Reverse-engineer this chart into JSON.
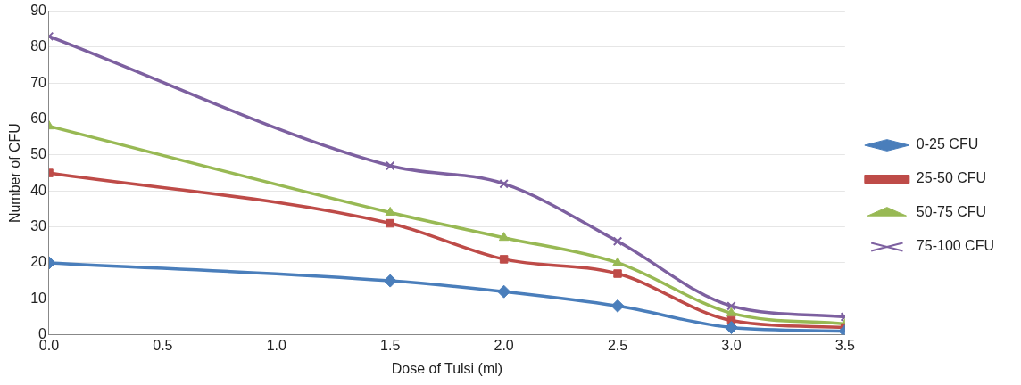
{
  "chart_data": {
    "type": "line",
    "xlabel": "Dose of Tulsi (ml)",
    "ylabel": "Number of CFU",
    "x": [
      0,
      1.5,
      2.0,
      2.5,
      3.0,
      3.5
    ],
    "series": [
      {
        "name": "0-25 CFU",
        "color": "#4a7ebb",
        "marker": "diamond",
        "values": [
          20,
          15,
          12,
          8,
          2,
          1
        ]
      },
      {
        "name": "25-50 CFU",
        "color": "#be4b48",
        "marker": "square",
        "values": [
          45,
          31,
          21,
          17,
          4,
          2
        ]
      },
      {
        "name": "50-75 CFU",
        "color": "#98b954",
        "marker": "triangle",
        "values": [
          58,
          34,
          27,
          20,
          6,
          3
        ]
      },
      {
        "name": "75-100 CFU",
        "color": "#7d60a0",
        "marker": "cross",
        "values": [
          83,
          47,
          42,
          26,
          8,
          5
        ]
      }
    ],
    "xlim": [
      0,
      3.5
    ],
    "xticks": [
      {
        "value": 0,
        "label": "0.0"
      },
      0.5,
      {
        "value": 1,
        "label": "1.0"
      },
      1.5,
      {
        "value": 2,
        "label": "2.0"
      },
      2.5,
      {
        "value": 3,
        "label": "3.0"
      },
      3.5
    ],
    "ylim": [
      0,
      90
    ],
    "yticks": [
      0,
      10,
      20,
      30,
      40,
      50,
      60,
      70,
      80,
      90
    ],
    "grid": "y",
    "legend": "right",
    "line_style": "solid"
  }
}
